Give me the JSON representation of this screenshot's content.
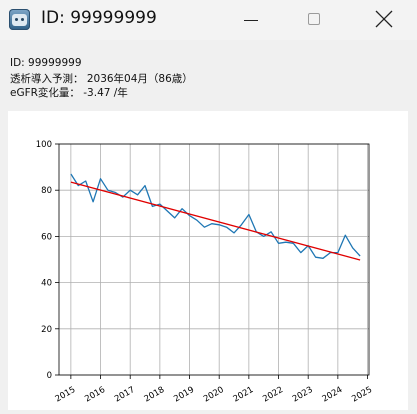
{
  "window": {
    "title": "ID: 99999999",
    "icons": {
      "app": "robot-app-icon",
      "minimize": "minimize-icon",
      "maximize": "maximize-icon",
      "close": "close-icon"
    }
  },
  "info": {
    "id_line": "ID: 99999999",
    "dialysis_line": "透析導入予測： 2036年04月（86歳）",
    "egfr_line": "eGFR変化量： -3.47 /年"
  },
  "chart_data": {
    "type": "line",
    "title": "",
    "xlabel": "",
    "ylabel": "",
    "xlim": [
      2014.6,
      2025.05
    ],
    "ylim": [
      0,
      100
    ],
    "x_ticks": [
      "2015",
      "2016",
      "2017",
      "2018",
      "2019",
      "2020",
      "2021",
      "2022",
      "2023",
      "2024",
      "2025"
    ],
    "y_ticks": [
      "0",
      "20",
      "40",
      "60",
      "80",
      "100"
    ],
    "grid": true,
    "series": [
      {
        "color": "#1f77b4",
        "points": [
          [
            2015.0,
            87.0
          ],
          [
            2015.25,
            82.0
          ],
          [
            2015.5,
            84.0
          ],
          [
            2015.75,
            75.0
          ],
          [
            2016.0,
            85.0
          ],
          [
            2016.25,
            80.0
          ],
          [
            2016.5,
            79.0
          ],
          [
            2016.75,
            77.0
          ],
          [
            2017.0,
            80.0
          ],
          [
            2017.25,
            78.0
          ],
          [
            2017.5,
            82.0
          ],
          [
            2017.75,
            73.0
          ],
          [
            2018.0,
            74.0
          ],
          [
            2018.25,
            71.0
          ],
          [
            2018.5,
            68.0
          ],
          [
            2018.75,
            72.0
          ],
          [
            2019.0,
            69.0
          ],
          [
            2019.25,
            67.0
          ],
          [
            2019.5,
            64.0
          ],
          [
            2019.75,
            65.5
          ],
          [
            2020.0,
            65.0
          ],
          [
            2020.25,
            64.0
          ],
          [
            2020.5,
            61.5
          ],
          [
            2020.75,
            65.0
          ],
          [
            2021.0,
            69.5
          ],
          [
            2021.25,
            62.0
          ],
          [
            2021.5,
            60.0
          ],
          [
            2021.75,
            62.0
          ],
          [
            2022.0,
            57.0
          ],
          [
            2022.25,
            57.5
          ],
          [
            2022.5,
            57.0
          ],
          [
            2022.75,
            53.0
          ],
          [
            2023.0,
            56.0
          ],
          [
            2023.25,
            51.0
          ],
          [
            2023.5,
            50.5
          ],
          [
            2023.75,
            53.0
          ],
          [
            2024.0,
            53.0
          ],
          [
            2024.25,
            60.5
          ],
          [
            2024.5,
            55.0
          ],
          [
            2024.75,
            51.5
          ]
        ]
      },
      {
        "color": "#e00000",
        "points": [
          [
            2015.0,
            83.5
          ],
          [
            2024.75,
            49.8
          ]
        ]
      }
    ]
  }
}
